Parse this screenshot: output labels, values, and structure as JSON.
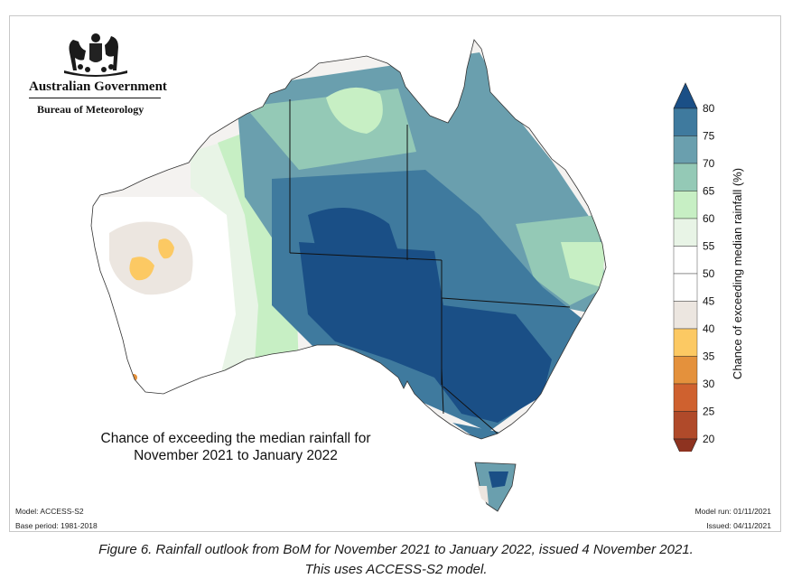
{
  "branding": {
    "government": "Australian Government",
    "agency": "Bureau of Meteorology",
    "crest_icon": "australian-coat-of-arms-icon"
  },
  "map": {
    "title_line1": "Chance of exceeding the median rainfall for",
    "title_line2": "November 2021 to January 2022",
    "region": "Australia",
    "dominant_pattern": "Wetter than median likely across eastern and central Australia (up to >80% in South Australia, NSW and northern Victoria); near-median to drier in Western Australia interior"
  },
  "legend": {
    "title": "Chance of exceeding median rainfall (%)",
    "ticks": [
      "80",
      "75",
      "70",
      "65",
      "60",
      "55",
      "50",
      "45",
      "40",
      "35",
      "30",
      "25",
      "20"
    ],
    "bands": [
      {
        "range": ">80",
        "color": "#1a4f86"
      },
      {
        "range": "75-80",
        "color": "#3f7a9e"
      },
      {
        "range": "70-75",
        "color": "#6a9fae"
      },
      {
        "range": "65-70",
        "color": "#94c9b6"
      },
      {
        "range": "60-65",
        "color": "#c7efc4"
      },
      {
        "range": "55-60",
        "color": "#e8f4e6"
      },
      {
        "range": "50-55",
        "color": "#ffffff"
      },
      {
        "range": "45-50",
        "color": "#ffffff"
      },
      {
        "range": "40-45",
        "color": "#ece6e0"
      },
      {
        "range": "35-40",
        "color": "#fcc963"
      },
      {
        "range": "30-35",
        "color": "#e4913c"
      },
      {
        "range": "25-30",
        "color": "#cf612f"
      },
      {
        "range": "20-25",
        "color": "#b04a2a"
      },
      {
        "range": "<20",
        "color": "#8e3320"
      }
    ]
  },
  "footer": {
    "model": "Model: ACCESS-S2",
    "base_period": "Base period: 1981-2018",
    "model_run": "Model run: 01/11/2021",
    "issued": "Issued: 04/11/2021"
  },
  "caption": {
    "line1": "Figure 6. Rainfall outlook from BoM for November 2021 to January 2022, issued 4 November 2021.",
    "line2": "This uses ACCESS-S2 model."
  }
}
